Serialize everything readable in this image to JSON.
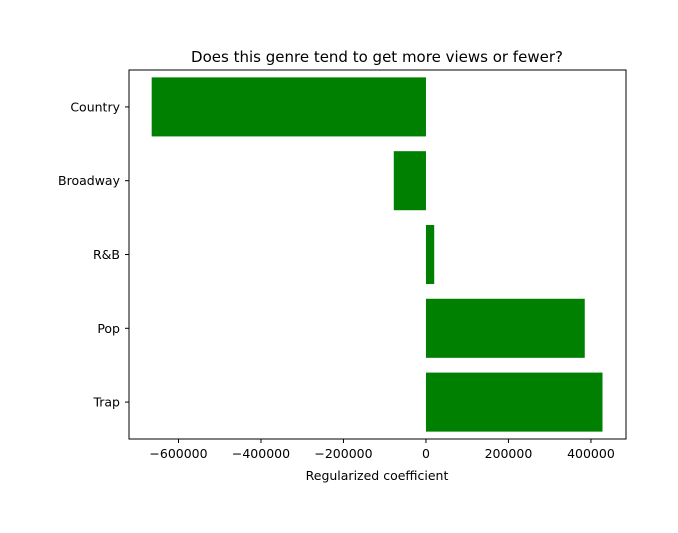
{
  "chart_data": {
    "type": "bar",
    "orientation": "horizontal",
    "title": "Does this genre tend to get more views or fewer?",
    "xlabel": "Regularized coefficient",
    "ylabel": "",
    "categories": [
      "Country",
      "Broadway",
      "R&B",
      "Pop",
      "Trap"
    ],
    "values": [
      -665000,
      -78000,
      20000,
      385000,
      428000
    ],
    "xlim": [
      -720000,
      485000
    ],
    "xticks": [
      -600000,
      -400000,
      -200000,
      0,
      200000,
      400000
    ],
    "xtick_labels": [
      "−600000",
      "−400000",
      "−200000",
      "0",
      "200000",
      "400000"
    ],
    "bar_color": "#008000",
    "grid": false,
    "legend": "none"
  }
}
